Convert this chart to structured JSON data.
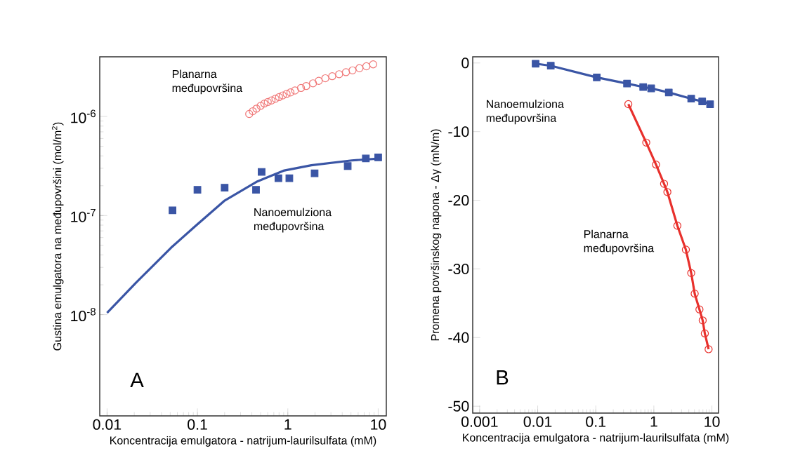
{
  "chart_data": [
    {
      "type": "scatter",
      "xlabel": "Koncentracija emulgatora - natrijum-laurilsulfata (mM)",
      "ylabel": "Gustina emulgatora na međupovršini (mol/m$^{2}$)",
      "log": "xy",
      "xlim": [
        0.0083,
        12.3
      ],
      "ylim": [
        9.5e-10,
        4e-06
      ],
      "xticks": [
        0.01,
        0.1,
        1,
        10
      ],
      "yticks": [
        {
          "value": 1e-08,
          "label": "10$^{-8}$"
        },
        {
          "value": 1e-07,
          "label": "10$^{-7}$"
        },
        {
          "value": 1e-06,
          "label": "10$^{-6}$"
        }
      ],
      "series": [
        {
          "name": "Planarna međupovršina",
          "type": "scatter",
          "marker": "circle",
          "color": "#f07878",
          "x": [
            0.374,
            0.41,
            0.45,
            0.5,
            0.55,
            0.6,
            0.66,
            0.73,
            0.8,
            0.88,
            0.97,
            1.07,
            1.2,
            1.4,
            1.6,
            1.9,
            2.2,
            2.6,
            3.1,
            3.7,
            4.4,
            5.2,
            6.2,
            7.4,
            8.8
          ],
          "values": [
            1.06e-06,
            1.13e-06,
            1.2e-06,
            1.28e-06,
            1.35e-06,
            1.4e-06,
            1.45e-06,
            1.51e-06,
            1.57e-06,
            1.63e-06,
            1.69e-06,
            1.75e-06,
            1.83e-06,
            1.94e-06,
            2.03e-06,
            2.16e-06,
            2.29e-06,
            2.43e-06,
            2.55e-06,
            2.67e-06,
            2.8e-06,
            2.92e-06,
            3.07e-06,
            3.21e-06,
            3.36e-06
          ]
        },
        {
          "name": "Nanoemulziona međupovršina",
          "type": "scatter",
          "marker": "square",
          "color": "#3a55a5",
          "x": [
            0.053,
            0.1,
            0.2,
            0.445,
            0.513,
            0.787,
            1.04,
            1.98,
            4.6,
            7.3,
            10
          ],
          "values": [
            1.13e-07,
            1.82e-07,
            1.91e-07,
            1.82e-07,
            2.76e-07,
            2.38e-07,
            2.38e-07,
            2.67e-07,
            3.16e-07,
            3.77e-07,
            3.86e-07
          ]
        },
        {
          "type": "line",
          "marker": "none",
          "color": "#3a55a5",
          "x": [
            0.01,
            0.0208,
            0.051,
            0.0946,
            0.201,
            0.46,
            0.914,
            1.82,
            5.1,
            10.9
          ],
          "values": [
            1.04e-08,
            2.09e-08,
            4.73e-08,
            7.8e-08,
            1.42e-07,
            2.21e-07,
            2.85e-07,
            3.22e-07,
            3.6e-07,
            3.77e-07
          ]
        }
      ],
      "annotations": [
        "A"
      ]
    },
    {
      "type": "line",
      "xlabel": "Koncentracija emulgatora - natrijum-laurilsulfata (mM)",
      "ylabel": "Promena površinskog napona - Δγ (mN/m)",
      "log": "x",
      "xlim": [
        0.00076,
        13
      ],
      "ylim": [
        -51,
        0.9
      ],
      "xticks": [
        0.001,
        0.01,
        0.1,
        1,
        10
      ],
      "yticks": [
        -50,
        -40,
        -30,
        -20,
        -10,
        0
      ],
      "series": [
        {
          "name": "Nanoemulziona međupovršina",
          "marker": "square",
          "color": "#3a55a5",
          "x": [
            0.0092,
            0.0168,
            0.104,
            0.345,
            0.655,
            0.9,
            1.81,
            4.4,
            6.8,
            9.3
          ],
          "values": [
            -0.1,
            -0.4,
            -2.1,
            -3.0,
            -3.5,
            -3.7,
            -4.3,
            -5.2,
            -5.6,
            -6.0
          ]
        },
        {
          "name": "Planarna međupovršina",
          "marker": "circle",
          "color": "#e8302c",
          "x": [
            0.364,
            0.74,
            1.09,
            1.5,
            1.71,
            2.54,
            3.56,
            4.4,
            5.05,
            6.1,
            6.93,
            7.55,
            8.77
          ],
          "values": [
            -6.0,
            -11.6,
            -14.8,
            -17.6,
            -18.8,
            -23.7,
            -27.2,
            -30.6,
            -33.6,
            -35.9,
            -37.5,
            -39.4,
            -41.7
          ]
        }
      ],
      "annotations": [
        "B"
      ]
    }
  ]
}
